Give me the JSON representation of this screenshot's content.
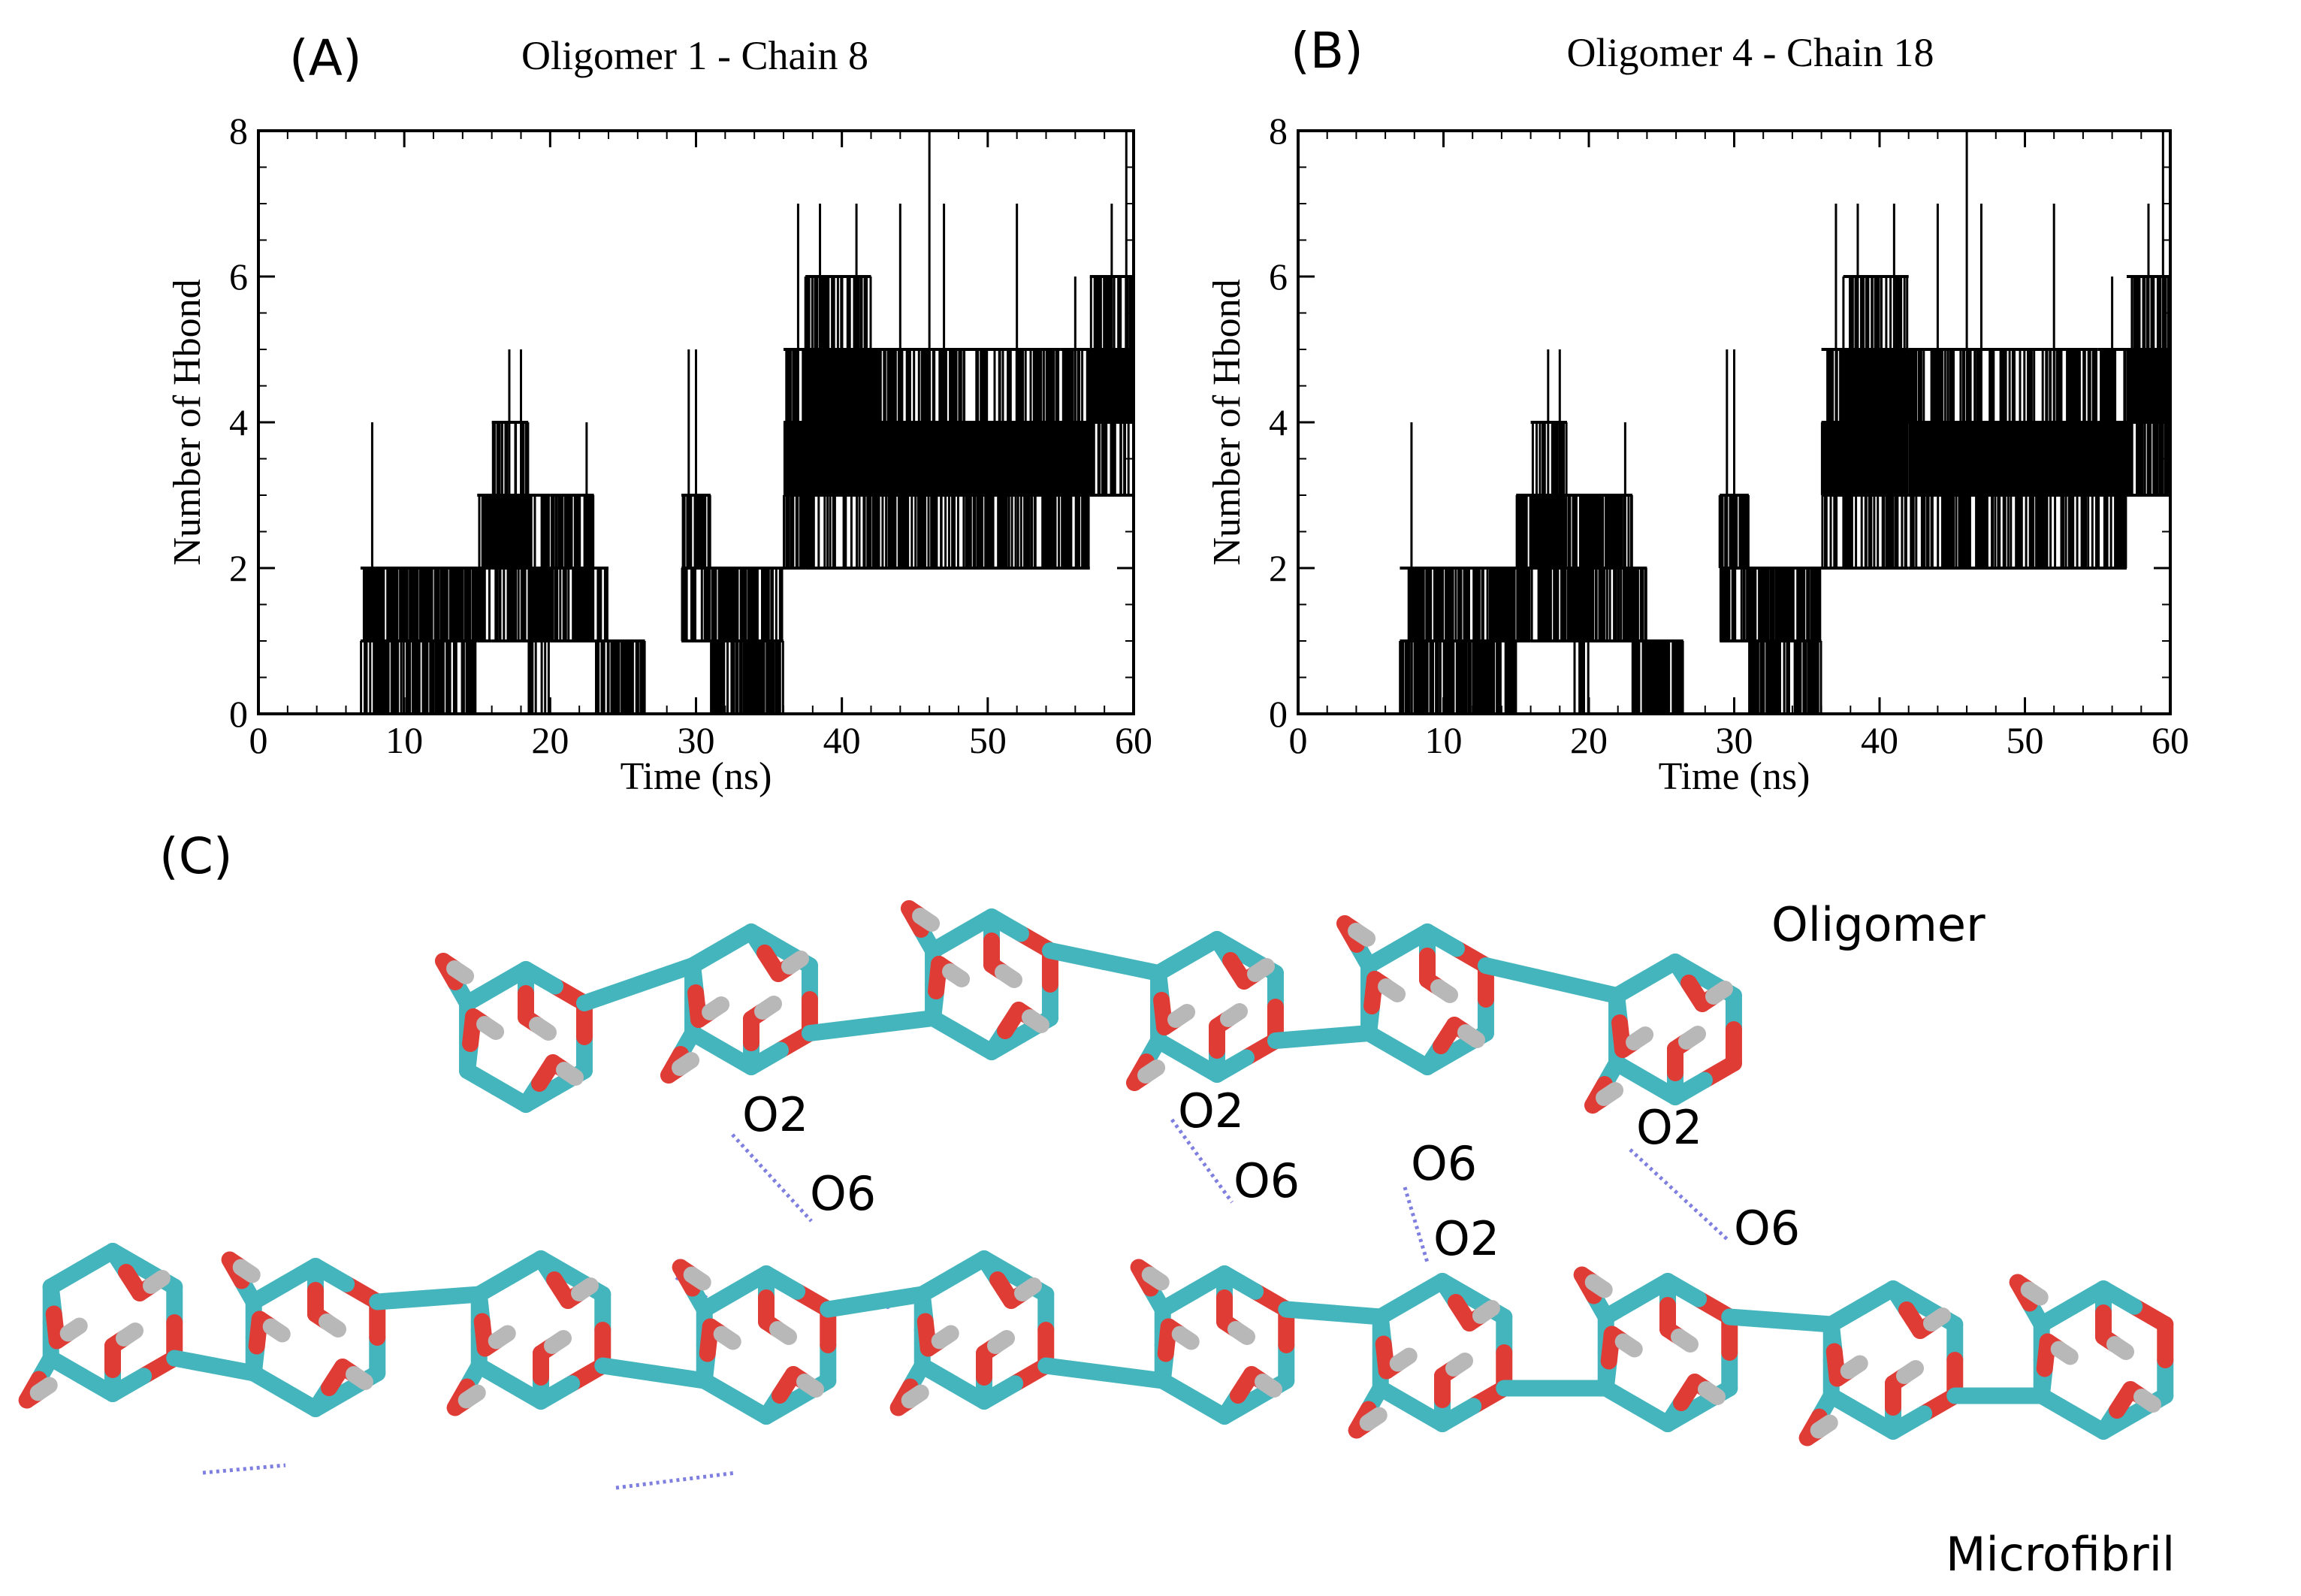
{
  "figure": {
    "panel_a_letter": "(A)",
    "panel_b_letter": "(B)",
    "panel_c_letter": "(C)"
  },
  "chart_data": [
    {
      "type": "line",
      "title": "Oligomer 1 - Chain 8",
      "xlabel": "Time (ns)",
      "ylabel": "Number of Hbond",
      "xlim": [
        0,
        60
      ],
      "ylim": [
        0,
        8
      ],
      "xticks": [
        "0",
        "10",
        "20",
        "30",
        "40",
        "50",
        "60"
      ],
      "yticks": [
        "0",
        "2",
        "4",
        "6",
        "8"
      ],
      "segments": [
        {
          "t0": 0,
          "t1": 7.0,
          "lo": 0,
          "hi": 0
        },
        {
          "t0": 7.0,
          "t1": 8.0,
          "lo": 0,
          "hi": 2
        },
        {
          "t0": 8.0,
          "t1": 15.0,
          "lo": 0,
          "hi": 2
        },
        {
          "t0": 15.0,
          "t1": 16.0,
          "lo": 1,
          "hi": 3
        },
        {
          "t0": 16.0,
          "t1": 18.5,
          "lo": 1,
          "hi": 4
        },
        {
          "t0": 18.5,
          "t1": 20.0,
          "lo": 0,
          "hi": 3
        },
        {
          "t0": 20.0,
          "t1": 23.0,
          "lo": 1,
          "hi": 3
        },
        {
          "t0": 23.0,
          "t1": 24.0,
          "lo": 0,
          "hi": 2
        },
        {
          "t0": 24.0,
          "t1": 26.5,
          "lo": 0,
          "hi": 1
        },
        {
          "t0": 26.5,
          "t1": 29.0,
          "lo": 0,
          "hi": 0
        },
        {
          "t0": 29.0,
          "t1": 31.0,
          "lo": 1,
          "hi": 3
        },
        {
          "t0": 31.0,
          "t1": 36.0,
          "lo": 0,
          "hi": 2
        },
        {
          "t0": 36.0,
          "t1": 37.5,
          "lo": 2,
          "hi": 5
        },
        {
          "t0": 37.5,
          "t1": 42.0,
          "lo": 2,
          "hi": 6
        },
        {
          "t0": 42.0,
          "t1": 55.0,
          "lo": 2,
          "hi": 5
        },
        {
          "t0": 55.0,
          "t1": 57.0,
          "lo": 2,
          "hi": 5
        },
        {
          "t0": 57.0,
          "t1": 60.0,
          "lo": 3,
          "hi": 6
        }
      ],
      "spikes": [
        {
          "t": 7.8,
          "v": 4
        },
        {
          "t": 17.2,
          "v": 5
        },
        {
          "t": 18.0,
          "v": 5
        },
        {
          "t": 22.5,
          "v": 4
        },
        {
          "t": 29.5,
          "v": 5
        },
        {
          "t": 30.0,
          "v": 5
        },
        {
          "t": 37.0,
          "v": 7
        },
        {
          "t": 38.5,
          "v": 7
        },
        {
          "t": 41.0,
          "v": 7
        },
        {
          "t": 44.0,
          "v": 7
        },
        {
          "t": 46.0,
          "v": 8
        },
        {
          "t": 47.0,
          "v": 7
        },
        {
          "t": 52.0,
          "v": 7
        },
        {
          "t": 56.0,
          "v": 6
        },
        {
          "t": 58.5,
          "v": 7
        },
        {
          "t": 59.5,
          "v": 8
        }
      ]
    },
    {
      "type": "line",
      "title": "Oligomer 4 - Chain 18",
      "xlabel": "Time (ns)",
      "ylabel": "Number of Hbond",
      "xlim": [
        0,
        60
      ],
      "ylim": [
        0,
        8
      ],
      "xticks": [
        "0",
        "10",
        "20",
        "30",
        "40",
        "50",
        "60"
      ],
      "yticks": [
        "0",
        "2",
        "4",
        "6",
        "8"
      ],
      "segments": [
        {
          "t0": 0,
          "t1": 7.0,
          "lo": 0,
          "hi": 0
        },
        {
          "t0": 7.0,
          "t1": 8.0,
          "lo": 0,
          "hi": 2
        },
        {
          "t0": 8.0,
          "t1": 15.0,
          "lo": 0,
          "hi": 2
        },
        {
          "t0": 15.0,
          "t1": 16.0,
          "lo": 1,
          "hi": 3
        },
        {
          "t0": 16.0,
          "t1": 18.5,
          "lo": 1,
          "hi": 4
        },
        {
          "t0": 18.5,
          "t1": 20.0,
          "lo": 0,
          "hi": 3
        },
        {
          "t0": 20.0,
          "t1": 23.0,
          "lo": 1,
          "hi": 3
        },
        {
          "t0": 23.0,
          "t1": 24.0,
          "lo": 0,
          "hi": 2
        },
        {
          "t0": 24.0,
          "t1": 26.5,
          "lo": 0,
          "hi": 1
        },
        {
          "t0": 26.5,
          "t1": 29.0,
          "lo": 0,
          "hi": 0
        },
        {
          "t0": 29.0,
          "t1": 31.0,
          "lo": 1,
          "hi": 3
        },
        {
          "t0": 31.0,
          "t1": 36.0,
          "lo": 0,
          "hi": 2
        },
        {
          "t0": 36.0,
          "t1": 37.5,
          "lo": 2,
          "hi": 5
        },
        {
          "t0": 37.5,
          "t1": 42.0,
          "lo": 2,
          "hi": 6
        },
        {
          "t0": 42.0,
          "t1": 55.0,
          "lo": 2,
          "hi": 5
        },
        {
          "t0": 55.0,
          "t1": 57.0,
          "lo": 2,
          "hi": 5
        },
        {
          "t0": 57.0,
          "t1": 60.0,
          "lo": 3,
          "hi": 6
        }
      ],
      "spikes": [
        {
          "t": 7.8,
          "v": 4
        },
        {
          "t": 17.2,
          "v": 5
        },
        {
          "t": 18.0,
          "v": 5
        },
        {
          "t": 22.5,
          "v": 4
        },
        {
          "t": 29.5,
          "v": 5
        },
        {
          "t": 30.0,
          "v": 5
        },
        {
          "t": 37.0,
          "v": 7
        },
        {
          "t": 38.5,
          "v": 7
        },
        {
          "t": 41.0,
          "v": 7
        },
        {
          "t": 44.0,
          "v": 7
        },
        {
          "t": 46.0,
          "v": 8
        },
        {
          "t": 47.0,
          "v": 7
        },
        {
          "t": 52.0,
          "v": 7
        },
        {
          "t": 56.0,
          "v": 6
        },
        {
          "t": 58.5,
          "v": 7
        },
        {
          "t": 59.5,
          "v": 8
        }
      ]
    }
  ],
  "molecule": {
    "oligomer_label": "Oligomer",
    "microfibril_label": "Microfibril",
    "atom_labels": [
      "O2",
      "O6",
      "O2",
      "O6",
      "O6",
      "O2",
      "O2",
      "O6"
    ],
    "colors": {
      "carbon": "#44b5bd",
      "oxygen": "#e03c36",
      "hydrogen": "#b8b8b8",
      "hbond": "#7f7fe0"
    }
  }
}
